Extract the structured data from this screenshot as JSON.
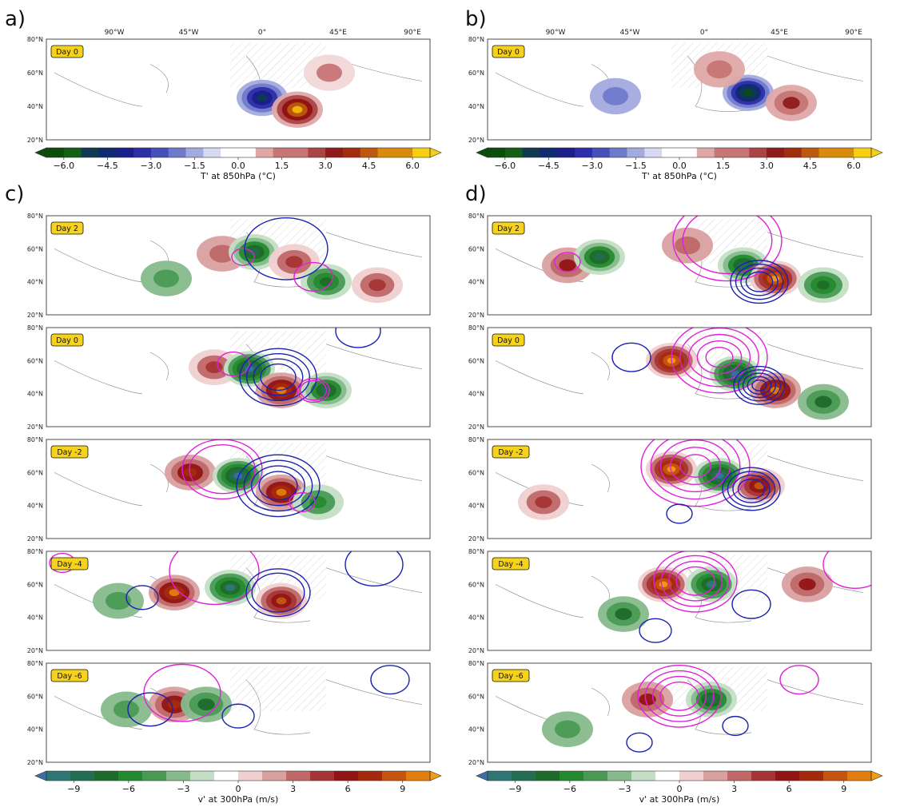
{
  "figure": {
    "panel_letters": [
      "a)",
      "b)",
      "c)",
      "d)"
    ],
    "lon_ticks": [
      "90°W",
      "45°W",
      "0°",
      "45°E",
      "90°E"
    ],
    "lat_ticks": [
      "80°N",
      "60°N",
      "40°N",
      "20°N"
    ],
    "colorbars": [
      {
        "id": "temperature",
        "label": "T' at 850hPa (°C)",
        "ticks": [
          "−6.0",
          "−4.5",
          "−3.0",
          "−1.5",
          "0.0",
          "1.5",
          "3.0",
          "4.5",
          "6.0"
        ],
        "tick_values": [
          -6.0,
          -4.5,
          -3.0,
          -1.5,
          0.0,
          1.5,
          3.0,
          4.5,
          6.0
        ],
        "range": [
          -6.6,
          6.6
        ],
        "levels": 22,
        "palette": "green-blue-white-red-yellow"
      },
      {
        "id": "meridional_wind",
        "label": "v' at 300hPa (m/s)",
        "ticks": [
          "−9",
          "−6",
          "−3",
          "0",
          "3",
          "6",
          "9"
        ],
        "tick_values": [
          -9,
          -6,
          -3,
          0,
          3,
          6,
          9
        ],
        "range": [
          -10.5,
          10.5
        ],
        "levels": 16,
        "palette": "blue-green-white-red-orange"
      }
    ]
  },
  "chart_data": [
    {
      "type": "heatmap",
      "panel": "a)",
      "badge": "Day 0",
      "variable": "T' at 850hPa (°C)",
      "lon_range": [
        -135,
        105
      ],
      "lat_range": [
        20,
        80
      ],
      "features": [
        {
          "kind": "anomaly",
          "lon": 0,
          "lat": 45,
          "value": -5.0
        },
        {
          "kind": "anomaly",
          "lon": 22,
          "lat": 38,
          "value": 6.0
        },
        {
          "kind": "anomaly",
          "lon": 42,
          "lat": 60,
          "value": 1.5
        }
      ]
    },
    {
      "type": "heatmap",
      "panel": "b)",
      "badge": "Day 0",
      "variable": "T' at 850hPa (°C)",
      "lon_range": [
        -135,
        105
      ],
      "lat_range": [
        20,
        80
      ],
      "features": [
        {
          "kind": "anomaly",
          "lon": 28,
          "lat": 48,
          "value": -6.6
        },
        {
          "kind": "anomaly",
          "lon": 10,
          "lat": 62,
          "value": 2.0
        },
        {
          "kind": "anomaly",
          "lon": 55,
          "lat": 42,
          "value": 3.0
        },
        {
          "kind": "anomaly",
          "lon": -55,
          "lat": 46,
          "value": -2.0
        }
      ]
    },
    {
      "type": "heatmap",
      "panel": "c)",
      "variable": "v' at 300hPa (m/s)",
      "lon_range": [
        -135,
        105
      ],
      "lat_range": [
        20,
        80
      ],
      "rows": [
        {
          "badge": "Day 2",
          "features": [
            {
              "kind": "anomaly",
              "lon": -25,
              "lat": 57,
              "value": 4.0
            },
            {
              "kind": "anomaly",
              "lon": -5,
              "lat": 58,
              "value": -8.0
            },
            {
              "kind": "anomaly",
              "lon": 20,
              "lat": 52,
              "value": 5.0
            },
            {
              "kind": "anomaly",
              "lon": 40,
              "lat": 40,
              "value": -7.0
            },
            {
              "kind": "anomaly",
              "lon": 72,
              "lat": 38,
              "value": 5.0
            },
            {
              "kind": "anomaly",
              "lon": -60,
              "lat": 42,
              "value": -4.0
            },
            {
              "kind": "contour_positive",
              "lon": -12,
              "lat": 55,
              "rings": 1,
              "size": 7
            },
            {
              "kind": "contour_negative",
              "lon": 15,
              "lat": 60,
              "rings": 1,
              "size": 26
            },
            {
              "kind": "contour_positive",
              "lon": 32,
              "lat": 43,
              "rings": 1,
              "size": 12
            }
          ]
        },
        {
          "badge": "Day 0",
          "features": [
            {
              "kind": "anomaly",
              "lon": -30,
              "lat": 56,
              "value": 5.0
            },
            {
              "kind": "anomaly",
              "lon": -8,
              "lat": 55,
              "value": -10.0
            },
            {
              "kind": "anomaly",
              "lon": 12,
              "lat": 42,
              "value": 9.0
            },
            {
              "kind": "anomaly",
              "lon": 40,
              "lat": 42,
              "value": -8.0
            },
            {
              "kind": "contour_positive",
              "lon": -18,
              "lat": 58,
              "rings": 1,
              "size": 10
            },
            {
              "kind": "contour_negative",
              "lon": 10,
              "lat": 50,
              "rings": 4,
              "size": 24
            },
            {
              "kind": "contour_positive",
              "lon": 32,
              "lat": 42,
              "rings": 2,
              "size": 10
            },
            {
              "kind": "contour_negative",
              "lon": 60,
              "lat": 78,
              "rings": 1,
              "size": 14
            }
          ]
        },
        {
          "badge": "Day -2",
          "features": [
            {
              "kind": "anomaly",
              "lon": -45,
              "lat": 60,
              "value": 7.0
            },
            {
              "kind": "anomaly",
              "lon": -15,
              "lat": 58,
              "value": -10.0
            },
            {
              "kind": "anomaly",
              "lon": 12,
              "lat": 48,
              "value": 9.0
            },
            {
              "kind": "anomaly",
              "lon": 35,
              "lat": 42,
              "value": -5.0
            },
            {
              "kind": "contour_positive",
              "lon": -25,
              "lat": 62,
              "rings": 2,
              "size": 25
            },
            {
              "kind": "contour_negative",
              "lon": 10,
              "lat": 52,
              "rings": 4,
              "size": 26
            },
            {
              "kind": "contour_positive",
              "lon": 25,
              "lat": 42,
              "rings": 1,
              "size": 8
            }
          ]
        },
        {
          "badge": "Day -4",
          "features": [
            {
              "kind": "anomaly",
              "lon": -55,
              "lat": 55,
              "value": 9.0
            },
            {
              "kind": "anomaly",
              "lon": -20,
              "lat": 58,
              "value": -9.0
            },
            {
              "kind": "anomaly",
              "lon": 12,
              "lat": 50,
              "value": 8.0
            },
            {
              "kind": "anomaly",
              "lon": -90,
              "lat": 50,
              "value": -4.0
            },
            {
              "kind": "contour_positive",
              "lon": -30,
              "lat": 68,
              "rings": 1,
              "size": 28
            },
            {
              "kind": "contour_negative",
              "lon": 10,
              "lat": 55,
              "rings": 2,
              "size": 20
            },
            {
              "kind": "contour_negative",
              "lon": -75,
              "lat": 52,
              "rings": 1,
              "size": 10
            },
            {
              "kind": "contour_negative",
              "lon": 70,
              "lat": 72,
              "rings": 1,
              "size": 18
            },
            {
              "kind": "contour_positive",
              "lon": -125,
              "lat": 73,
              "rings": 1,
              "size": 8
            }
          ]
        },
        {
          "badge": "Day -6",
          "features": [
            {
              "kind": "anomaly",
              "lon": -55,
              "lat": 55,
              "value": 7.0
            },
            {
              "kind": "anomaly",
              "lon": -35,
              "lat": 55,
              "value": -6.0
            },
            {
              "kind": "anomaly",
              "lon": -85,
              "lat": 52,
              "value": -4.0
            },
            {
              "kind": "contour_positive",
              "lon": -50,
              "lat": 62,
              "rings": 1,
              "size": 24
            },
            {
              "kind": "contour_negative",
              "lon": -70,
              "lat": 52,
              "rings": 1,
              "size": 14
            },
            {
              "kind": "contour_negative",
              "lon": -15,
              "lat": 48,
              "rings": 1,
              "size": 10
            },
            {
              "kind": "contour_negative",
              "lon": 80,
              "lat": 70,
              "rings": 1,
              "size": 12
            }
          ]
        }
      ]
    },
    {
      "type": "heatmap",
      "panel": "d)",
      "variable": "v' at 300hPa (m/s)",
      "lon_range": [
        -135,
        105
      ],
      "lat_range": [
        20,
        80
      ],
      "rows": [
        {
          "badge": "Day 2",
          "features": [
            {
              "kind": "anomaly",
              "lon": -85,
              "lat": 50,
              "value": 6.0
            },
            {
              "kind": "anomaly",
              "lon": -65,
              "lat": 55,
              "value": -8.0
            },
            {
              "kind": "anomaly",
              "lon": -10,
              "lat": 62,
              "value": 4.0
            },
            {
              "kind": "anomaly",
              "lon": 25,
              "lat": 50,
              "value": -8.0
            },
            {
              "kind": "anomaly",
              "lon": 45,
              "lat": 42,
              "value": 10.0
            },
            {
              "kind": "anomaly",
              "lon": 75,
              "lat": 38,
              "value": -7.0
            },
            {
              "kind": "contour_positive",
              "lon": 15,
              "lat": 65,
              "rings": 2,
              "size": 34
            },
            {
              "kind": "contour_negative",
              "lon": 35,
              "lat": 40,
              "rings": 4,
              "size": 18
            },
            {
              "kind": "contour_positive",
              "lon": -85,
              "lat": 52,
              "rings": 1,
              "size": 8
            }
          ]
        },
        {
          "badge": "Day 0",
          "features": [
            {
              "kind": "anomaly",
              "lon": -20,
              "lat": 60,
              "value": 10.0
            },
            {
              "kind": "anomaly",
              "lon": 20,
              "lat": 52,
              "value": -10.0
            },
            {
              "kind": "anomaly",
              "lon": 45,
              "lat": 42,
              "value": 9.0
            },
            {
              "kind": "anomaly",
              "lon": 75,
              "lat": 35,
              "value": -6.0
            },
            {
              "kind": "contour_positive",
              "lon": 10,
              "lat": 62,
              "rings": 5,
              "size": 30
            },
            {
              "kind": "contour_negative",
              "lon": 35,
              "lat": 45,
              "rings": 5,
              "size": 16
            },
            {
              "kind": "contour_negative",
              "lon": -45,
              "lat": 62,
              "rings": 1,
              "size": 12
            }
          ]
        },
        {
          "badge": "Day -2",
          "features": [
            {
              "kind": "anomaly",
              "lon": -20,
              "lat": 62,
              "value": 10.0
            },
            {
              "kind": "anomaly",
              "lon": 10,
              "lat": 58,
              "value": -10.0
            },
            {
              "kind": "anomaly",
              "lon": 35,
              "lat": 52,
              "value": 8.0
            },
            {
              "kind": "anomaly",
              "lon": -100,
              "lat": 42,
              "value": 5.0
            },
            {
              "kind": "contour_positive",
              "lon": -5,
              "lat": 64,
              "rings": 5,
              "size": 34
            },
            {
              "kind": "contour_negative",
              "lon": 30,
              "lat": 50,
              "rings": 4,
              "size": 18
            },
            {
              "kind": "contour_negative",
              "lon": -15,
              "lat": 35,
              "rings": 1,
              "size": 8
            }
          ]
        },
        {
          "badge": "Day -4",
          "features": [
            {
              "kind": "anomaly",
              "lon": -25,
              "lat": 60,
              "value": 10.0
            },
            {
              "kind": "anomaly",
              "lon": 5,
              "lat": 60,
              "value": -9.0
            },
            {
              "kind": "anomaly",
              "lon": -50,
              "lat": 42,
              "value": -6.0
            },
            {
              "kind": "anomaly",
              "lon": 65,
              "lat": 60,
              "value": 6.0
            },
            {
              "kind": "contour_positive",
              "lon": -5,
              "lat": 62,
              "rings": 4,
              "size": 26
            },
            {
              "kind": "contour_negative",
              "lon": 30,
              "lat": 48,
              "rings": 1,
              "size": 12
            },
            {
              "kind": "contour_negative",
              "lon": -30,
              "lat": 32,
              "rings": 1,
              "size": 10
            },
            {
              "kind": "contour_positive",
              "lon": 95,
              "lat": 72,
              "rings": 1,
              "size": 20
            }
          ]
        },
        {
          "badge": "Day -6",
          "features": [
            {
              "kind": "anomaly",
              "lon": -35,
              "lat": 58,
              "value": 6.0
            },
            {
              "kind": "anomaly",
              "lon": 5,
              "lat": 58,
              "value": -8.0
            },
            {
              "kind": "anomaly",
              "lon": -85,
              "lat": 40,
              "value": -4.0
            },
            {
              "kind": "contour_positive",
              "lon": -15,
              "lat": 60,
              "rings": 4,
              "size": 26
            },
            {
              "kind": "contour_negative",
              "lon": 20,
              "lat": 42,
              "rings": 1,
              "size": 8
            },
            {
              "kind": "contour_negative",
              "lon": -40,
              "lat": 32,
              "rings": 1,
              "size": 8
            },
            {
              "kind": "contour_positive",
              "lon": 60,
              "lat": 70,
              "rings": 1,
              "size": 12
            }
          ]
        }
      ]
    }
  ]
}
